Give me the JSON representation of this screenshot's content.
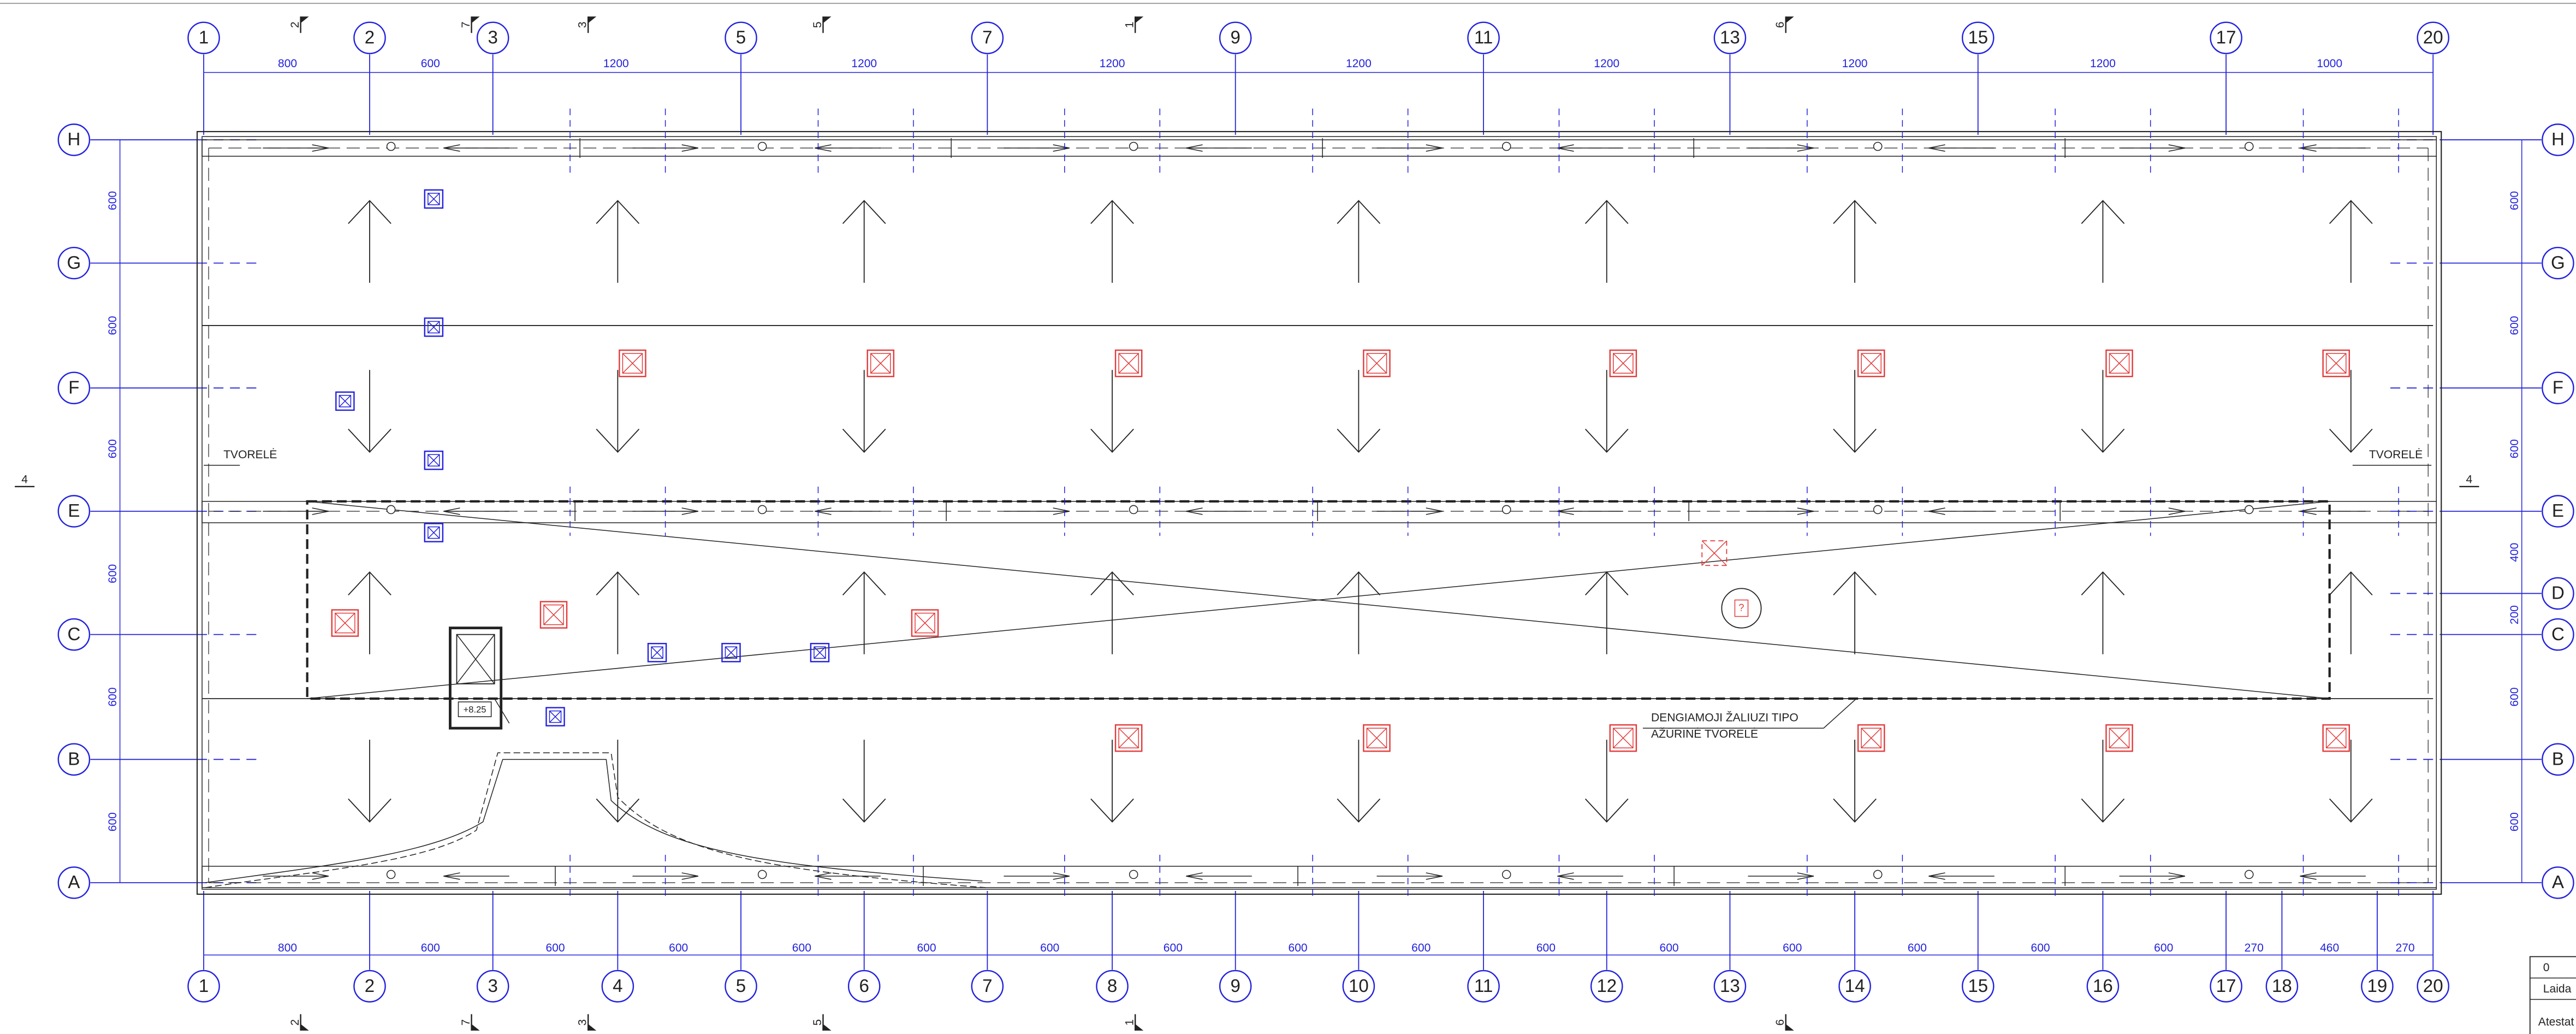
{
  "grid": {
    "top_columns": [
      "1",
      "2",
      "3",
      "5",
      "7",
      "9",
      "11",
      "13",
      "15",
      "17",
      "20"
    ],
    "bottom_columns": [
      "1",
      "2",
      "3",
      "4",
      "5",
      "6",
      "7",
      "8",
      "9",
      "10",
      "11",
      "12",
      "13",
      "14",
      "15",
      "16",
      "17",
      "18",
      "19",
      "20"
    ],
    "left_rows": [
      "H",
      "G",
      "F",
      "E",
      "C",
      "B",
      "A"
    ],
    "right_rows": [
      "H",
      "G",
      "F",
      "E",
      "D",
      "C",
      "B",
      "A"
    ]
  },
  "dimensions": {
    "top": [
      800,
      600,
      1200,
      1200,
      1200,
      1200,
      1200,
      1200,
      1200,
      1000
    ],
    "bottom": [
      800,
      600,
      600,
      600,
      600,
      600,
      600,
      600,
      600,
      600,
      600,
      600,
      600,
      600,
      600,
      600,
      270,
      460,
      270
    ],
    "left": [
      600,
      600,
      600,
      600,
      600,
      600
    ],
    "right": [
      600,
      600,
      600,
      400,
      200,
      600,
      600
    ]
  },
  "section_marks": {
    "top": [
      "2",
      "7",
      "3",
      "5",
      "1",
      "6"
    ],
    "bottom": [
      "2",
      "7",
      "3",
      "5",
      "1",
      "6"
    ],
    "side": [
      "4",
      "4"
    ]
  },
  "notes": {
    "parapet_left": "TVORELĖ",
    "parapet_right": "TVORELĖ",
    "louver_line1": "DENGIAMOJI ŽALIUZI TIPO",
    "louver_line2": "AŽŪRINĖ TVORELĖ",
    "level": "+8.25",
    "unknown": "?"
  },
  "title_block": {
    "revision": "0",
    "issue": "Laida",
    "certificate": "Atestat"
  }
}
